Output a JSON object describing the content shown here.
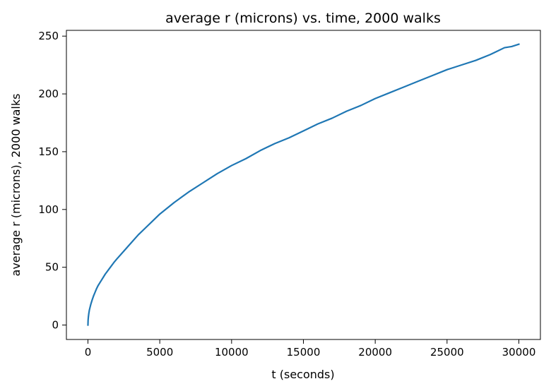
{
  "chart_data": {
    "type": "line",
    "title": "average r (microns) vs. time, 2000 walks",
    "xlabel": "t (seconds)",
    "ylabel": "average r (microns), 2000 walks",
    "xlim": [
      -1500,
      31500
    ],
    "ylim": [
      -12.5,
      255
    ],
    "grid": false,
    "legend": "none",
    "line_color": "#1f77b4",
    "xticks": [
      0,
      5000,
      10000,
      15000,
      20000,
      25000,
      30000
    ],
    "yticks": [
      0,
      50,
      100,
      150,
      200,
      250
    ],
    "series": [
      {
        "x": [
          0,
          10,
          30,
          60,
          100,
          150,
          200,
          300,
          400,
          500,
          600,
          700,
          800,
          1000,
          1200,
          1500,
          1800,
          2000,
          2500,
          3000,
          3500,
          4000,
          4500,
          5000,
          6000,
          7000,
          8000,
          9000,
          10000,
          11000,
          12000,
          13000,
          14000,
          15000,
          16000,
          17000,
          18000,
          19000,
          20000,
          21000,
          22000,
          23000,
          24000,
          25000,
          26000,
          27000,
          28000,
          28500,
          29000,
          29500,
          30000
        ],
        "y": [
          0,
          4,
          7,
          10,
          13,
          15.5,
          18,
          22,
          25.5,
          28.5,
          31.5,
          34,
          36,
          40,
          44,
          49,
          54,
          57,
          64,
          71,
          78,
          84,
          90,
          96,
          106,
          115,
          123,
          131,
          138,
          144,
          151,
          157,
          162,
          168,
          174,
          179,
          185,
          190,
          196,
          201,
          206,
          211,
          216,
          221,
          225,
          229,
          234,
          237,
          240,
          241,
          243
        ]
      }
    ]
  }
}
